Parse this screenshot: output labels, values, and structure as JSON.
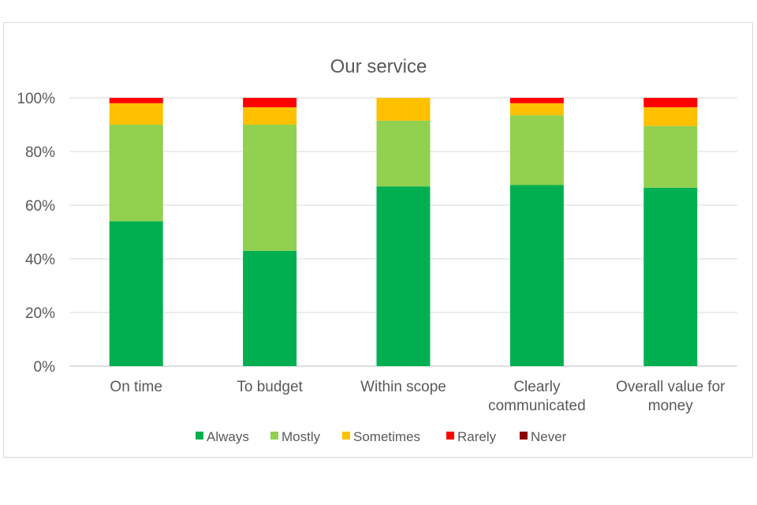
{
  "chart_data": {
    "type": "bar",
    "stacked": true,
    "title": "Our service",
    "categories": [
      [
        "On time"
      ],
      [
        "To budget"
      ],
      [
        "Within scope"
      ],
      [
        "Clearly",
        "communicated"
      ],
      [
        "Overall value for",
        "money"
      ]
    ],
    "series": [
      {
        "name": "Always",
        "color": "#00b050",
        "values": [
          54,
          43,
          67,
          67.5,
          66.5
        ]
      },
      {
        "name": "Mostly",
        "color": "#92d050",
        "values": [
          36,
          47,
          24.5,
          26,
          23
        ]
      },
      {
        "name": "Sometimes",
        "color": "#ffc000",
        "values": [
          8,
          6.5,
          8.5,
          4.5,
          7
        ]
      },
      {
        "name": "Rarely",
        "color": "#ff0000",
        "values": [
          2,
          3.5,
          0,
          2,
          3.5
        ]
      },
      {
        "name": "Never",
        "color": "#8b0000",
        "values": [
          0,
          0,
          0,
          0,
          0
        ]
      }
    ],
    "ylim": [
      0,
      100
    ],
    "yticks": [
      "0%",
      "20%",
      "40%",
      "60%",
      "80%",
      "100%"
    ],
    "ytick_values": [
      0,
      20,
      40,
      60,
      80,
      100
    ],
    "grid": true,
    "legend_position": "bottom"
  }
}
